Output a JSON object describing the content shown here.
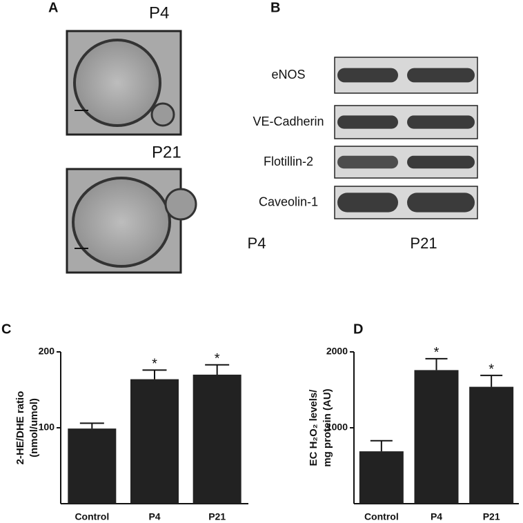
{
  "panel_labels": [
    "A",
    "B",
    "C",
    "D"
  ],
  "micrographs": [
    "P4",
    "P21"
  ],
  "blot": {
    "proteins": [
      "eNOS",
      "VE-Cadherin",
      "Flotillin-2",
      "Caveolin-1"
    ],
    "lanes": [
      "P4",
      "P21"
    ]
  },
  "chart_data": [
    {
      "type": "bar",
      "ylabel": [
        "2-HE/DHE ratio",
        "(nmol/umol)"
      ],
      "categories": [
        "Control",
        "P4",
        "P21"
      ],
      "values": [
        99,
        164,
        170
      ],
      "errors": [
        7,
        12,
        13
      ],
      "annotations": [
        null,
        "*",
        "*"
      ],
      "color": "#222222",
      "ylim": [
        0,
        200
      ],
      "yticks": [
        100,
        200
      ]
    },
    {
      "type": "bar",
      "ylabel": [
        "EC H₂O₂ levels/",
        "mg protein (AU)"
      ],
      "categories": [
        "Control",
        "P4",
        "P21"
      ],
      "values": [
        690,
        1760,
        1540
      ],
      "errors": [
        140,
        150,
        150
      ],
      "annotations": [
        null,
        "*",
        "*"
      ],
      "color": "#222222",
      "ylim": [
        0,
        2000
      ],
      "yticks": [
        1000,
        2000
      ]
    }
  ]
}
